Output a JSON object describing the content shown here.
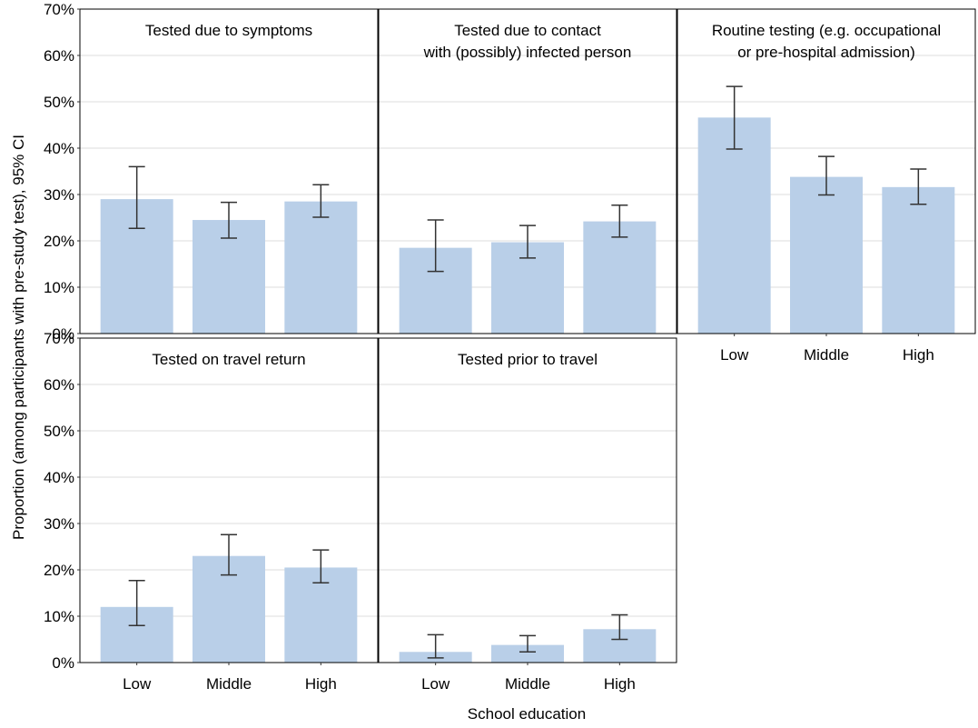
{
  "chart_data": {
    "type": "bar",
    "layout": "facet grid, 2 rows x 3 columns",
    "xlabel": "School education",
    "ylabel": "Proportion (among participants with pre-study test), 95% CI",
    "categories": [
      "Low",
      "Middle",
      "High"
    ],
    "ylim": [
      0,
      70
    ],
    "yticks": [
      "0%",
      "10%",
      "20%",
      "30%",
      "40%",
      "50%",
      "60%",
      "70%"
    ],
    "grid": true,
    "bar_color": "#b9cfe8",
    "errorbar_color": "#333333",
    "panels": [
      {
        "title_lines": [
          "Tested due to symptoms"
        ],
        "values": [
          29,
          24.5,
          28.5
        ],
        "ci_low": [
          22.7,
          20.6,
          25.1
        ],
        "ci_high": [
          36,
          28.3,
          32.1
        ]
      },
      {
        "title_lines": [
          "Tested due to contact",
          "with (possibly) infected person"
        ],
        "values": [
          18.5,
          19.7,
          24.2
        ],
        "ci_low": [
          13.4,
          16.3,
          20.8
        ],
        "ci_high": [
          24.5,
          23.3,
          27.7
        ]
      },
      {
        "title_lines": [
          "Routine testing (e.g. occupational",
          "or pre-hospital admission)"
        ],
        "values": [
          46.6,
          33.8,
          31.6
        ],
        "ci_low": [
          39.8,
          29.9,
          27.9
        ],
        "ci_high": [
          53.3,
          38.2,
          35.5
        ]
      },
      {
        "title_lines": [
          "Tested on travel return"
        ],
        "values": [
          12,
          23,
          20.5
        ],
        "ci_low": [
          8,
          18.9,
          17.2
        ],
        "ci_high": [
          17.7,
          27.6,
          24.3
        ]
      },
      {
        "title_lines": [
          "Tested prior to travel"
        ],
        "values": [
          2.3,
          3.8,
          7.2
        ],
        "ci_low": [
          1,
          2.3,
          5
        ],
        "ci_high": [
          6,
          5.8,
          10.3
        ]
      }
    ]
  }
}
